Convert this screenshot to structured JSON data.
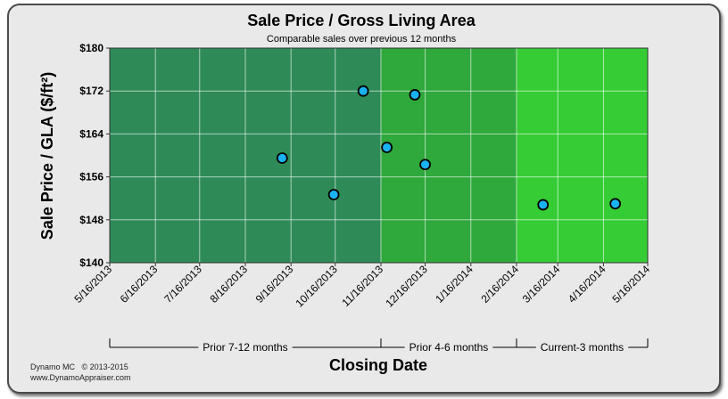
{
  "chart_data": {
    "type": "scatter",
    "title": "Sale Price / Gross Living Area",
    "subtitle": "Comparable sales over previous 12 months",
    "xlabel": "Closing Date",
    "ylabel": "Sale Price / GLA ($/ft²)",
    "ylim": [
      140,
      180
    ],
    "yticks": [
      "$180",
      "$172",
      "$164",
      "$156",
      "$148",
      "$140"
    ],
    "ytick_values": [
      180,
      172,
      164,
      156,
      148,
      140
    ],
    "xlim": [
      "2013-05-16",
      "2014-05-16"
    ],
    "xticks": [
      "5/16/2013",
      "6/16/2013",
      "7/16/2013",
      "8/16/2013",
      "9/16/2013",
      "10/16/2013",
      "11/16/2013",
      "12/16/2013",
      "1/16/2014",
      "2/16/2014",
      "3/16/2014",
      "4/16/2014",
      "5/16/2014"
    ],
    "grid": true,
    "regions": [
      {
        "label": "Prior 7-12 months",
        "start": "5/16/2013",
        "end": "11/16/2013",
        "color": "#2e8b57"
      },
      {
        "label": "Prior 4-6 months",
        "start": "11/16/2013",
        "end": "2/16/2014",
        "color": "#2fa83c"
      },
      {
        "label": "Current-3 months",
        "start": "2/16/2014",
        "end": "5/16/2014",
        "color": "#35cc35"
      }
    ],
    "points": [
      {
        "x": "2013-09-10",
        "y": 159.5
      },
      {
        "x": "2013-10-15",
        "y": 152.7
      },
      {
        "x": "2013-11-04",
        "y": 172.0
      },
      {
        "x": "2013-11-20",
        "y": 161.5
      },
      {
        "x": "2013-12-09",
        "y": 171.3
      },
      {
        "x": "2013-12-16",
        "y": 158.3
      },
      {
        "x": "2014-03-06",
        "y": 150.8
      },
      {
        "x": "2014-04-24",
        "y": 151.0
      }
    ],
    "point_color": "#1ab2f0"
  },
  "footer": {
    "brand": "Dynamo MC",
    "copyright": "© 2013-2015",
    "url": "www.DynamoAppraiser.com"
  }
}
